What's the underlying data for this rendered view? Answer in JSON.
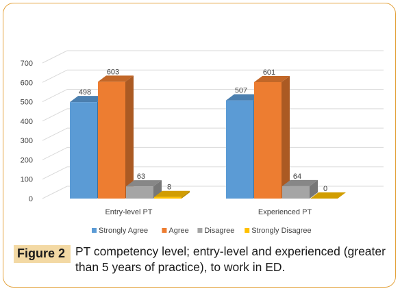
{
  "chart_data": {
    "type": "bar",
    "categories": [
      "Entry-level PT",
      "Experienced PT"
    ],
    "series": [
      {
        "name": "Strongly Agree",
        "values": [
          498,
          507
        ],
        "color": "#5b9bd5"
      },
      {
        "name": "Agree",
        "values": [
          603,
          601
        ],
        "color": "#ed7d31"
      },
      {
        "name": "Disagree",
        "values": [
          63,
          64
        ],
        "color": "#a5a5a5"
      },
      {
        "name": "Strongly Disagree",
        "values": [
          8,
          0
        ],
        "color": "#ffc000"
      }
    ],
    "yticks": [
      0,
      100,
      200,
      300,
      400,
      500,
      600,
      700
    ],
    "ylim": [
      0,
      700
    ],
    "grid": true,
    "legend_position": "bottom"
  },
  "caption": {
    "label": "Figure 2",
    "text": "PT competency level; entry-level and experienced (greater than 5 years of practice), to work in ED."
  },
  "colors": {
    "border": "#e3a23c",
    "label_bg": "#f3d9a4"
  }
}
